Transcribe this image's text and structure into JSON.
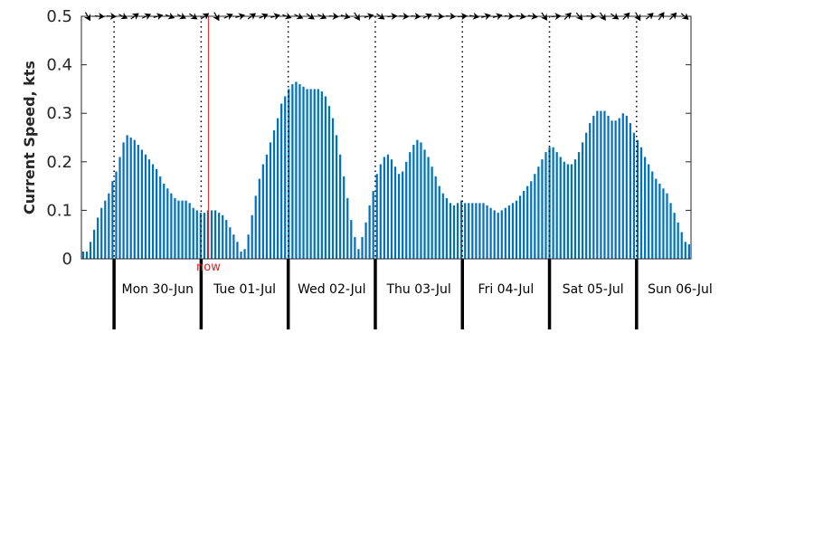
{
  "chart_data": {
    "type": "bar",
    "ylabel": "Current Speed, kts",
    "ylim": [
      0,
      0.5
    ],
    "yticks": [
      "0",
      "0.1",
      "0.2",
      "0.3",
      "0.4",
      "0.5"
    ],
    "ytick_values": [
      0,
      0.1,
      0.2,
      0.3,
      0.4,
      0.5
    ],
    "now_label": "now",
    "now_hour": 26,
    "hours_total": 168,
    "start_offset_hours": -9,
    "day_labels": [
      "Mon 30-Jun",
      "Tue 01-Jul",
      "Wed 02-Jul",
      "Thu 03-Jul",
      "Fri 04-Jul",
      "Sat 05-Jul",
      "Sun 06-Jul"
    ],
    "hourly_speed_kts": [
      0.015,
      0.015,
      0.035,
      0.06,
      0.085,
      0.105,
      0.12,
      0.135,
      0.16,
      0.18,
      0.21,
      0.24,
      0.255,
      0.25,
      0.245,
      0.235,
      0.225,
      0.215,
      0.205,
      0.195,
      0.185,
      0.17,
      0.155,
      0.145,
      0.135,
      0.125,
      0.12,
      0.12,
      0.12,
      0.115,
      0.105,
      0.1,
      0.095,
      0.095,
      0.1,
      0.1,
      0.1,
      0.095,
      0.09,
      0.08,
      0.065,
      0.05,
      0.035,
      0.015,
      0.02,
      0.05,
      0.09,
      0.13,
      0.165,
      0.195,
      0.215,
      0.24,
      0.265,
      0.29,
      0.32,
      0.335,
      0.35,
      0.36,
      0.365,
      0.36,
      0.355,
      0.35,
      0.35,
      0.35,
      0.35,
      0.345,
      0.335,
      0.315,
      0.29,
      0.255,
      0.215,
      0.17,
      0.125,
      0.08,
      0.045,
      0.02,
      0.045,
      0.075,
      0.11,
      0.14,
      0.175,
      0.195,
      0.21,
      0.215,
      0.205,
      0.19,
      0.175,
      0.18,
      0.2,
      0.22,
      0.235,
      0.245,
      0.24,
      0.225,
      0.21,
      0.19,
      0.17,
      0.15,
      0.135,
      0.125,
      0.115,
      0.11,
      0.115,
      0.12,
      0.115,
      0.115,
      0.115,
      0.115,
      0.115,
      0.115,
      0.11,
      0.105,
      0.1,
      0.095,
      0.1,
      0.105,
      0.11,
      0.115,
      0.12,
      0.13,
      0.14,
      0.15,
      0.16,
      0.175,
      0.19,
      0.205,
      0.22,
      0.23,
      0.23,
      0.22,
      0.21,
      0.2,
      0.195,
      0.195,
      0.205,
      0.22,
      0.24,
      0.26,
      0.28,
      0.295,
      0.305,
      0.305,
      0.305,
      0.295,
      0.285,
      0.285,
      0.29,
      0.3,
      0.295,
      0.28,
      0.26,
      0.245,
      0.23,
      0.21,
      0.195,
      0.18,
      0.165,
      0.155,
      0.145,
      0.135,
      0.115,
      0.095,
      0.075,
      0.055,
      0.035,
      0.03
    ],
    "direction_arrows_deg": [
      150,
      95,
      95,
      115,
      55,
      65,
      75,
      110,
      115,
      125,
      55,
      150,
      65,
      75,
      55,
      65,
      75,
      110,
      115,
      125,
      115,
      95,
      105,
      145,
      75,
      125,
      85,
      95,
      95,
      65,
      95,
      95,
      85,
      100,
      75,
      75,
      95,
      100,
      100,
      145,
      85,
      45,
      140,
      95,
      145,
      125,
      45,
      150,
      50,
      35,
      45,
      130
    ],
    "colors": {
      "bar": "#0072bd",
      "now": "#e8201e",
      "axis": "#262626"
    }
  }
}
